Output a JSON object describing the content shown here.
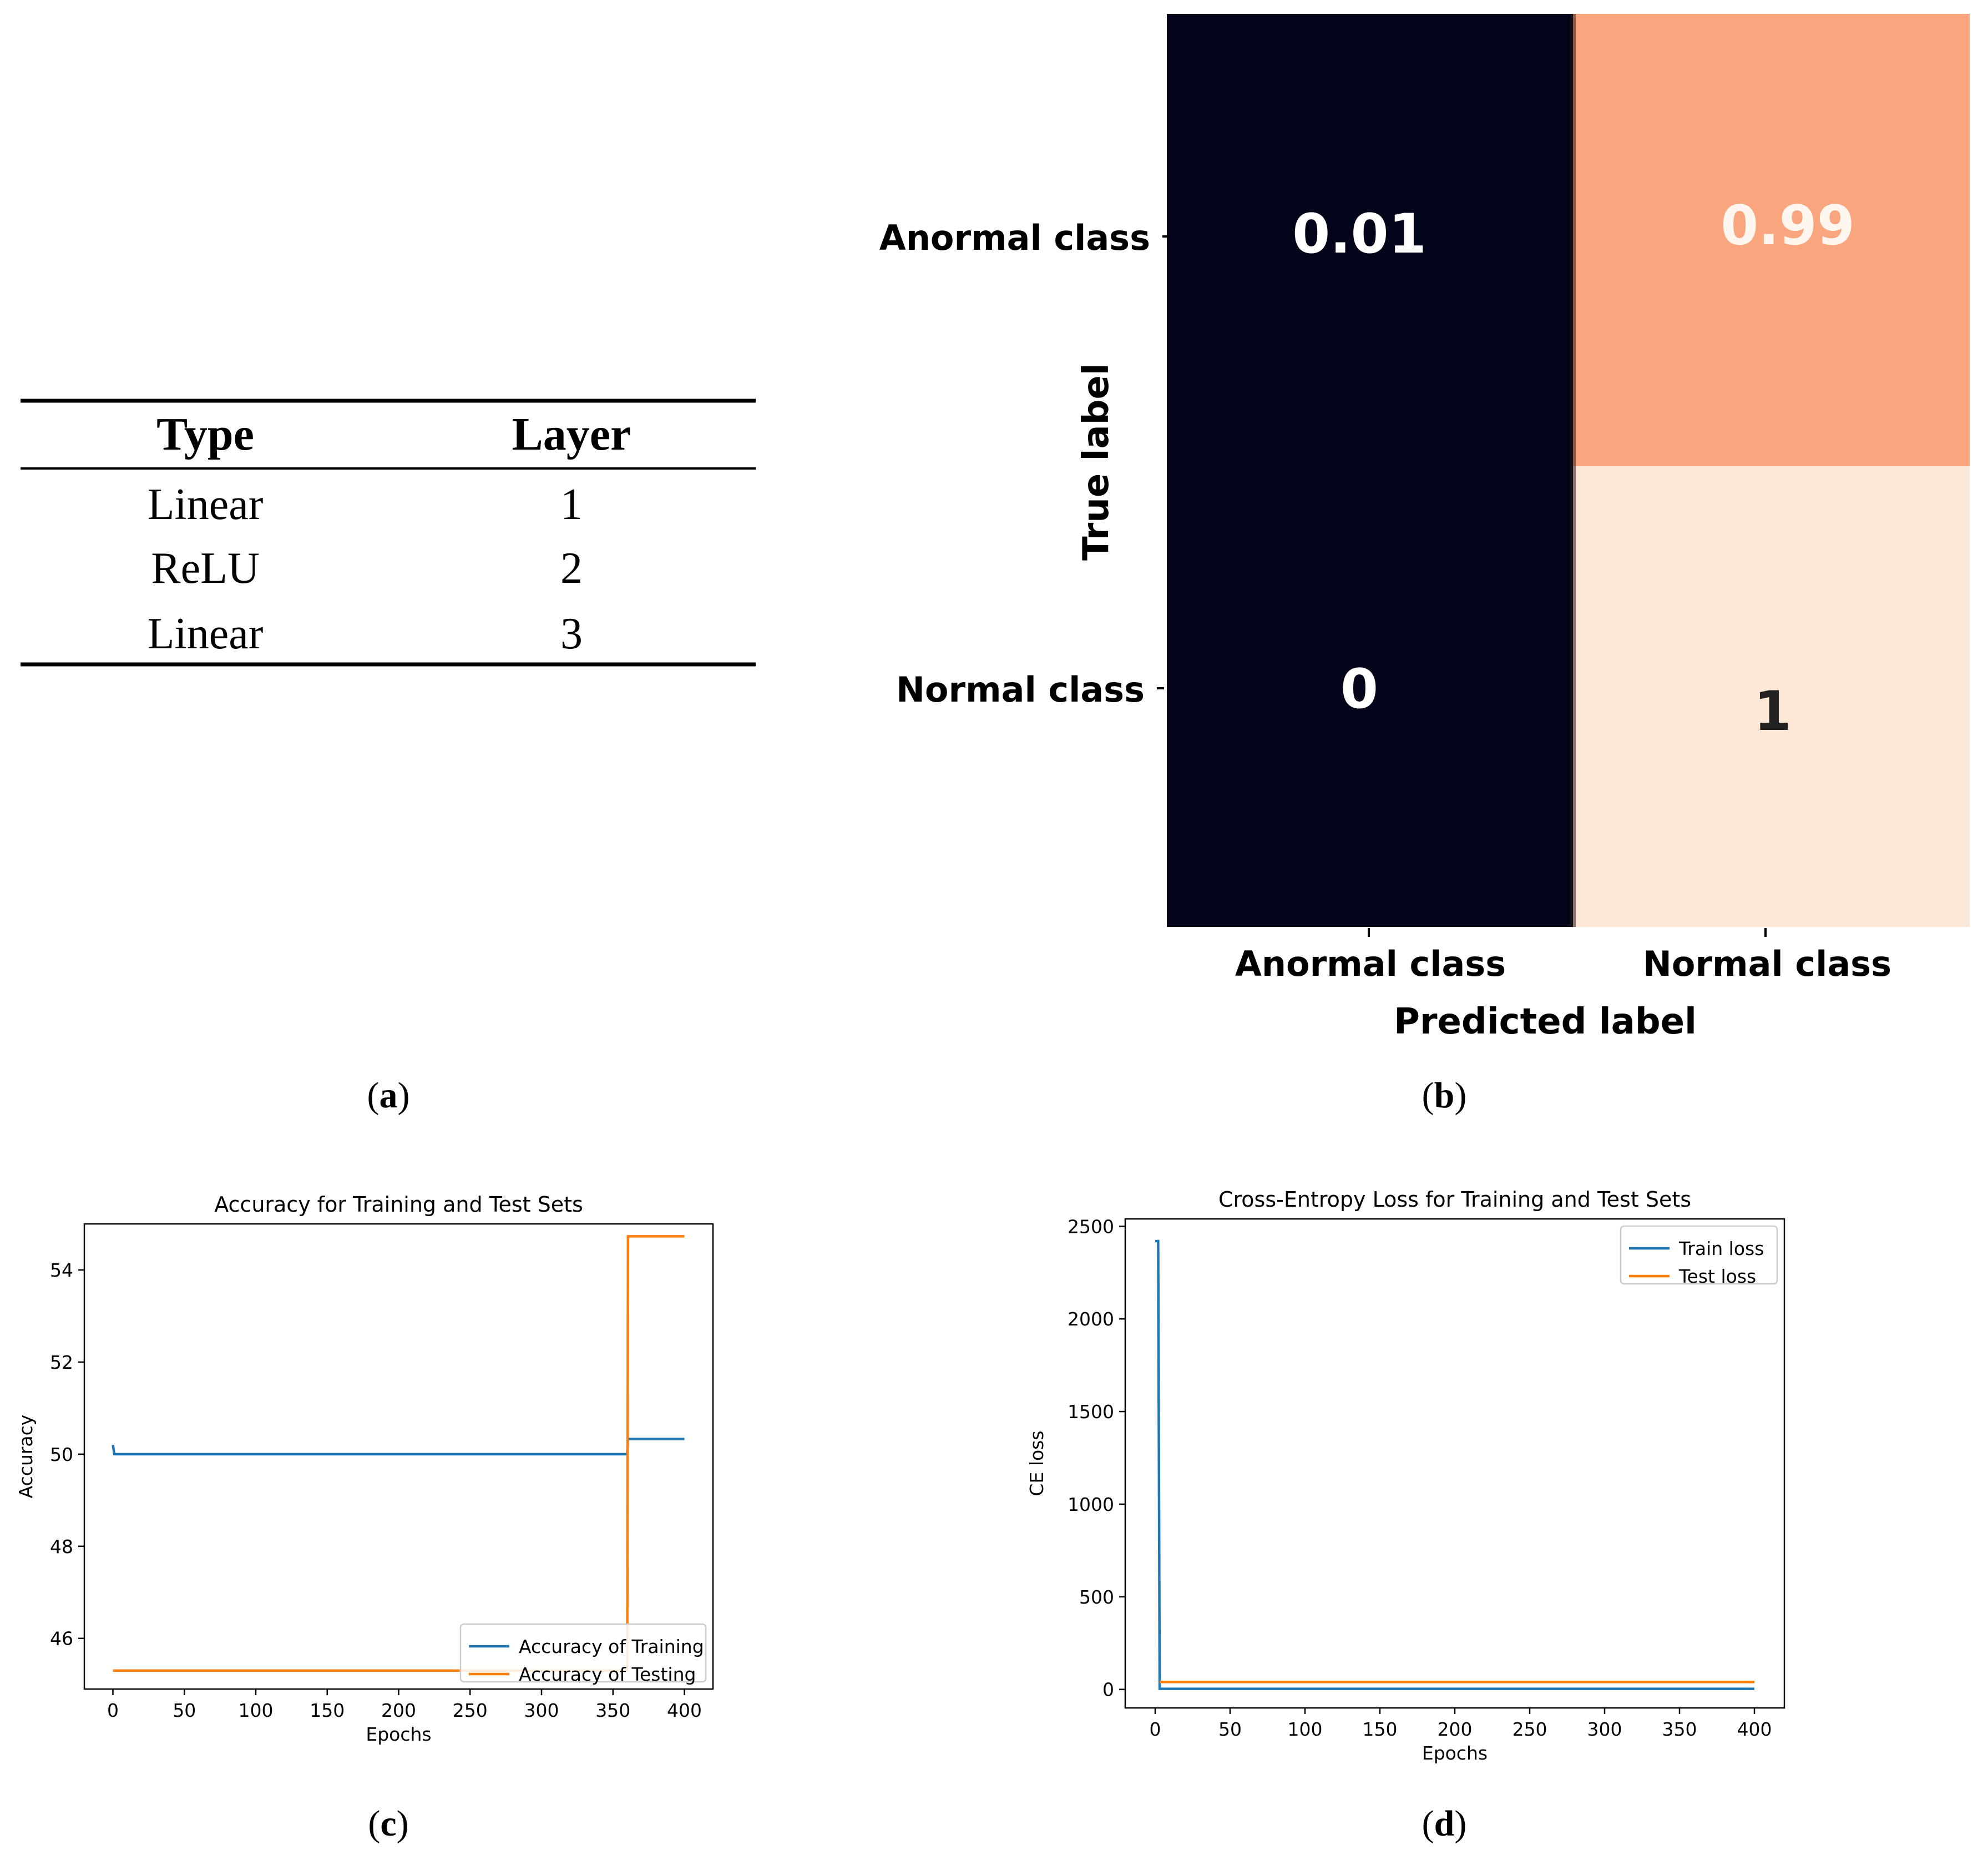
{
  "panel_labels": {
    "a": "(a)",
    "a_letter": "a",
    "b": "(b)",
    "b_letter": "b",
    "c": "(c)",
    "c_letter": "c",
    "d": "(d)",
    "d_letter": "d"
  },
  "colors": {
    "train": "#1f77b4",
    "test": "#ff7f0e",
    "cm_dark": "#03051a",
    "cm_mid": "#f9a57e",
    "cm_light": "#fde8d8"
  },
  "chart_data": [
    {
      "type": "table",
      "columns": [
        "Type",
        "Layer"
      ],
      "rows": [
        [
          "Linear",
          "1"
        ],
        [
          "ReLU",
          "2"
        ],
        [
          "Linear",
          "3"
        ]
      ]
    },
    {
      "type": "heatmap",
      "xlabel": "Predicted label",
      "ylabel": "True label",
      "x_categories": [
        "Anormal class",
        "Normal class"
      ],
      "y_categories": [
        "Anormal class",
        "Normal class"
      ],
      "values": [
        [
          0.01,
          0.99
        ],
        [
          0,
          1
        ]
      ],
      "cell_labels": [
        [
          "0.01",
          "0.99"
        ],
        [
          "0",
          "1"
        ]
      ]
    },
    {
      "type": "line",
      "title": "Accuracy for Training and Test Sets",
      "xlabel": "Epochs",
      "ylabel": "Accuracy",
      "xlim": [
        -20,
        420
      ],
      "ylim": [
        44.9,
        55.0
      ],
      "xticks": [
        0,
        50,
        100,
        150,
        200,
        250,
        300,
        350,
        400
      ],
      "yticks": [
        46,
        48,
        50,
        52,
        54
      ],
      "legend": "lower right",
      "series": [
        {
          "name": "Accuracy of Training",
          "color_key": "train",
          "x": [
            0,
            1,
            2,
            359,
            360,
            360.5,
            400
          ],
          "y": [
            50.2,
            50.0,
            50.0,
            50.0,
            50.0,
            50.33,
            50.33
          ]
        },
        {
          "name": "Accuracy of Testing",
          "color_key": "test",
          "x": [
            0,
            359,
            360,
            360.5,
            400
          ],
          "y": [
            45.3,
            45.3,
            45.3,
            54.73,
            54.73
          ]
        }
      ]
    },
    {
      "type": "line",
      "title": "Cross-Entropy Loss for Training and Test Sets",
      "xlabel": "Epochs",
      "ylabel": "CE loss",
      "xlim": [
        -20,
        420
      ],
      "ylim": [
        -100,
        2540
      ],
      "xticks": [
        0,
        50,
        100,
        150,
        200,
        250,
        300,
        350,
        400
      ],
      "yticks": [
        0,
        500,
        1000,
        1500,
        2000,
        2500
      ],
      "legend": "upper right",
      "series": [
        {
          "name": "Train loss",
          "color_key": "train",
          "x": [
            0,
            2,
            3,
            400
          ],
          "y": [
            2420,
            2420,
            3,
            3
          ]
        },
        {
          "name": "Test loss",
          "color_key": "test",
          "x": [
            3,
            400
          ],
          "y": [
            40,
            40
          ]
        }
      ]
    }
  ]
}
